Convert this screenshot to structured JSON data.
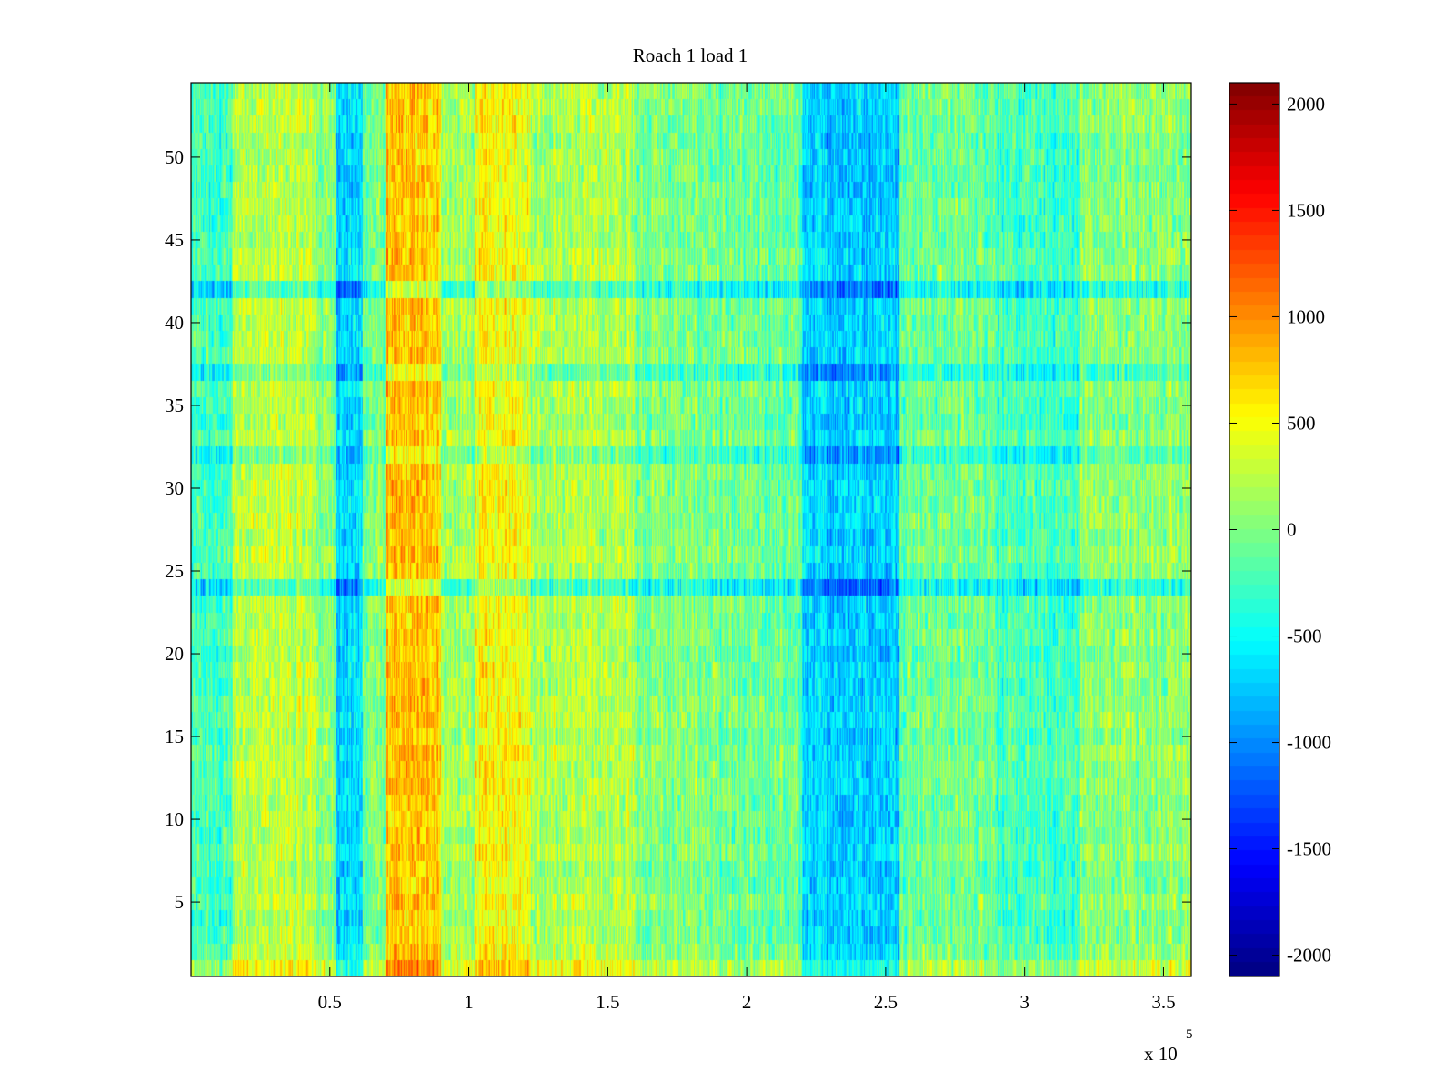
{
  "chart_data": {
    "type": "heatmap",
    "title": "Roach 1 load 1",
    "xlabel": "",
    "ylabel": "",
    "x_exponent_label": {
      "base": "x 10",
      "exponent": "5"
    },
    "xlim": [
      0,
      360000
    ],
    "ylim": [
      0.5,
      54.5
    ],
    "rows": 54,
    "x_ticks": [
      {
        "value": 50000,
        "label": "0.5"
      },
      {
        "value": 100000,
        "label": "1"
      },
      {
        "value": 150000,
        "label": "1.5"
      },
      {
        "value": 200000,
        "label": "2"
      },
      {
        "value": 250000,
        "label": "2.5"
      },
      {
        "value": 300000,
        "label": "3"
      },
      {
        "value": 350000,
        "label": "3.5"
      }
    ],
    "y_ticks": [
      {
        "value": 5,
        "label": "5"
      },
      {
        "value": 10,
        "label": "10"
      },
      {
        "value": 15,
        "label": "15"
      },
      {
        "value": 20,
        "label": "20"
      },
      {
        "value": 25,
        "label": "25"
      },
      {
        "value": 30,
        "label": "30"
      },
      {
        "value": 35,
        "label": "35"
      },
      {
        "value": 40,
        "label": "40"
      },
      {
        "value": 45,
        "label": "45"
      },
      {
        "value": 50,
        "label": "50"
      }
    ],
    "colorbar": {
      "colormap": "jet",
      "clim": [
        -2100,
        2100
      ],
      "ticks": [
        {
          "value": 2000,
          "label": "2000"
        },
        {
          "value": 1500,
          "label": "1500"
        },
        {
          "value": 1000,
          "label": "1000"
        },
        {
          "value": 500,
          "label": "500"
        },
        {
          "value": 0,
          "label": "0"
        },
        {
          "value": -500,
          "label": "-500"
        },
        {
          "value": -1000,
          "label": "-1000"
        },
        {
          "value": -1500,
          "label": "-1500"
        },
        {
          "value": -2000,
          "label": "-2000"
        }
      ]
    },
    "column_bands": [
      {
        "x_start": 0,
        "x_end": 15000,
        "mean": -250
      },
      {
        "x_start": 15000,
        "x_end": 45000,
        "mean": 250
      },
      {
        "x_start": 45000,
        "x_end": 52000,
        "mean": 50
      },
      {
        "x_start": 52000,
        "x_end": 62000,
        "mean": -650
      },
      {
        "x_start": 62000,
        "x_end": 70000,
        "mean": 0
      },
      {
        "x_start": 70000,
        "x_end": 90000,
        "mean": 750
      },
      {
        "x_start": 90000,
        "x_end": 102000,
        "mean": 150
      },
      {
        "x_start": 102000,
        "x_end": 122000,
        "mean": 500
      },
      {
        "x_start": 122000,
        "x_end": 160000,
        "mean": 200
      },
      {
        "x_start": 160000,
        "x_end": 190000,
        "mean": 0
      },
      {
        "x_start": 190000,
        "x_end": 220000,
        "mean": -100
      },
      {
        "x_start": 220000,
        "x_end": 255000,
        "mean": -700
      },
      {
        "x_start": 255000,
        "x_end": 290000,
        "mean": -50
      },
      {
        "x_start": 290000,
        "x_end": 320000,
        "mean": -250
      },
      {
        "x_start": 320000,
        "x_end": 360000,
        "mean": 50
      }
    ],
    "row_offsets": [
      {
        "row": 1,
        "shift": 300
      },
      {
        "row": 24,
        "shift": -500
      },
      {
        "row": 32,
        "shift": -350
      },
      {
        "row": 37,
        "shift": -400
      },
      {
        "row": 42,
        "shift": -500
      }
    ],
    "noise_amplitude": 400
  }
}
